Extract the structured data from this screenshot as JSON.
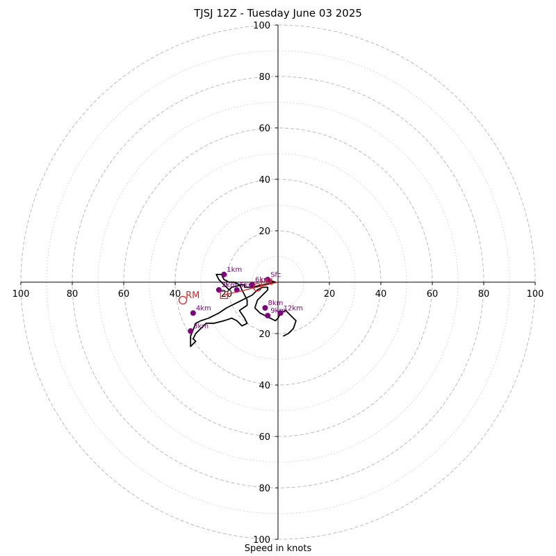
{
  "title": "TJSJ 12Z - Tuesday June 03 2025",
  "chart_data": {
    "type": "scatter",
    "title": "TJSJ 12Z - Tuesday June 03 2025",
    "xlabel": "Speed in knots",
    "ylabel": "",
    "xlim": [
      -100,
      100
    ],
    "ylim": [
      -100,
      100
    ],
    "ring_major": [
      20,
      40,
      60,
      80,
      100
    ],
    "ring_minor": [
      10,
      30,
      50,
      70,
      90
    ],
    "tick_values": [
      20,
      40,
      60,
      80,
      100
    ],
    "grid": true,
    "colors": {
      "hodo": "#000000",
      "height_point": "#800080",
      "motion": "#d62728",
      "grid_major": "#bbbbbb",
      "grid_minor": "#d0d0d0"
    },
    "hodograph": {
      "x": [
        -4,
        -1,
        -6,
        -10,
        -13,
        -13,
        -14,
        -18,
        -19,
        -20,
        -21,
        -22,
        -23,
        -24,
        -23,
        -22,
        -21,
        -19,
        -17,
        -15,
        -14,
        -13,
        -12,
        -12,
        -15,
        -13,
        -12,
        -14,
        -16,
        -18,
        -21,
        -25,
        -28,
        -30,
        -32,
        -33,
        -32,
        -33,
        -34,
        -34,
        -32,
        -30,
        -27,
        -23,
        -20,
        -16,
        -10,
        -8,
        -6,
        -4,
        -4,
        -6,
        -8,
        -9,
        -7,
        -5,
        -3,
        -1,
        0,
        1,
        3,
        5,
        7,
        6,
        4,
        2
      ],
      "y": [
        1,
        0,
        -1,
        -2,
        -2,
        -1,
        -1,
        -2,
        -3,
        -2,
        -1,
        0,
        1,
        3,
        3,
        3,
        1,
        0,
        0,
        -1,
        -3,
        -5,
        -7,
        -9,
        -11,
        -14,
        -16,
        -17,
        -15,
        -14,
        -15,
        -16,
        -16,
        -18,
        -20,
        -22,
        -23,
        -24,
        -25,
        -21,
        -16,
        -15,
        -14,
        -12,
        -10,
        -8,
        -5,
        -3,
        -2,
        -2,
        -3,
        -5,
        -7,
        -10,
        -12,
        -13,
        -14,
        -15,
        -14,
        -12,
        -11,
        -13,
        -15,
        -18,
        -20,
        -21
      ]
    },
    "height_points": [
      {
        "label": "Sfc",
        "x": -4,
        "y": 1
      },
      {
        "label": "1km",
        "x": -21,
        "y": 3
      },
      {
        "label": "2km",
        "x": -23,
        "y": -3
      },
      {
        "label": "3km",
        "x": -34,
        "y": -19
      },
      {
        "label": "4km",
        "x": -33,
        "y": -12
      },
      {
        "label": "5km",
        "x": -16,
        "y": -3
      },
      {
        "label": "6km",
        "x": -10,
        "y": -1
      },
      {
        "label": "8km",
        "x": -5,
        "y": -10
      },
      {
        "label": "9km",
        "x": -4,
        "y": -13
      },
      {
        "label": "12km",
        "x": 1,
        "y": -12
      }
    ],
    "storm_motion": [
      {
        "label": "RM",
        "x": -37,
        "y": -7
      },
      {
        "label": "LM",
        "x": -8,
        "y": -2
      }
    ],
    "mean_wind_marker": {
      "label": "",
      "x": -21,
      "y": -5
    }
  }
}
